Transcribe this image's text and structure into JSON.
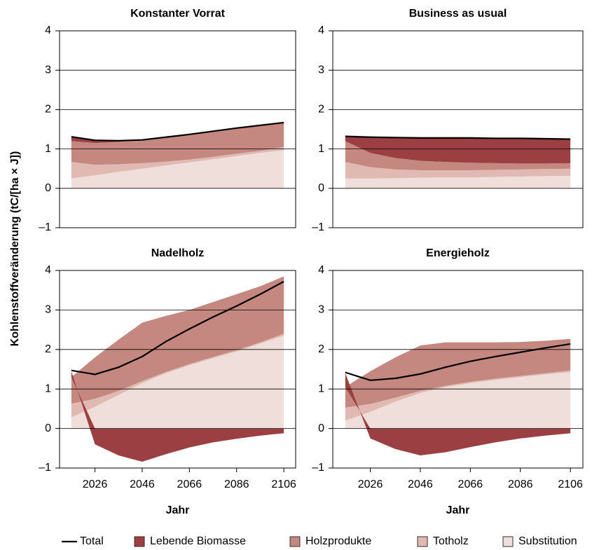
{
  "chart_data": [
    {
      "type": "area",
      "title": "Konstanter Vorrat",
      "ylabel": "Kohlenstoffveränderung (tC/[ha × J])",
      "x": [
        2016,
        2026,
        2036,
        2046,
        2056,
        2066,
        2076,
        2086,
        2096,
        2106
      ],
      "xlim": [
        2011,
        2111
      ],
      "ylim": [
        -1,
        4
      ],
      "yticks": [
        {
          "value": -1,
          "label": "–1"
        },
        0,
        1,
        2,
        3,
        4
      ],
      "grid": true,
      "series": [
        {
          "name": "Total",
          "type": "line",
          "color": "#000000",
          "values": [
            1.31,
            1.22,
            1.21,
            1.23,
            1.3,
            1.37,
            1.45,
            1.53,
            1.6,
            1.67
          ]
        },
        {
          "name": "Lebende Biomasse",
          "color": "#9b3f42",
          "values": [
            0.1,
            0.05,
            0.02,
            0,
            0,
            0,
            0,
            0,
            0,
            0
          ]
        },
        {
          "name": "Holzprodukte",
          "color": "#c48880",
          "values": [
            0.53,
            0.55,
            0.57,
            0.58,
            0.62,
            0.64,
            0.65,
            0.65,
            0.65,
            0.62
          ]
        },
        {
          "name": "Totholz",
          "color": "#dfb9b2",
          "values": [
            0.42,
            0.27,
            0.19,
            0.14,
            0.1,
            0.07,
            0.06,
            0.06,
            0.05,
            0.08
          ]
        },
        {
          "name": "Substitution",
          "color": "#f0dedb",
          "values": [
            0.25,
            0.33,
            0.42,
            0.5,
            0.58,
            0.66,
            0.74,
            0.82,
            0.9,
            0.97
          ]
        }
      ]
    },
    {
      "type": "area",
      "title": "Business as usual",
      "x": [
        2016,
        2026,
        2036,
        2046,
        2056,
        2066,
        2076,
        2086,
        2096,
        2106
      ],
      "xlim": [
        2011,
        2111
      ],
      "ylim": [
        -1,
        4
      ],
      "yticks": [
        {
          "value": -1,
          "label": "–1"
        },
        0,
        1,
        2,
        3,
        4
      ],
      "grid": true,
      "series": [
        {
          "name": "Total",
          "type": "line",
          "color": "#000000",
          "values": [
            1.32,
            1.3,
            1.29,
            1.28,
            1.28,
            1.28,
            1.27,
            1.27,
            1.26,
            1.25
          ]
        },
        {
          "name": "Lebende Biomasse",
          "color": "#9b3f42",
          "values": [
            0.1,
            0.39,
            0.51,
            0.57,
            0.6,
            0.62,
            0.62,
            0.63,
            0.62,
            0.6
          ]
        },
        {
          "name": "Holzprodukte",
          "color": "#c48880",
          "values": [
            0.53,
            0.36,
            0.29,
            0.24,
            0.21,
            0.19,
            0.17,
            0.15,
            0.14,
            0.14
          ]
        },
        {
          "name": "Totholz",
          "color": "#dfb9b2",
          "values": [
            0.42,
            0.29,
            0.22,
            0.19,
            0.18,
            0.18,
            0.18,
            0.18,
            0.18,
            0.18
          ]
        },
        {
          "name": "Substitution",
          "color": "#f0dedb",
          "values": [
            0.25,
            0.25,
            0.26,
            0.27,
            0.28,
            0.28,
            0.29,
            0.3,
            0.31,
            0.32
          ]
        }
      ]
    },
    {
      "type": "area",
      "title": "Nadelholz",
      "xlabel": "Jahr",
      "x": [
        2016,
        2026,
        2036,
        2046,
        2056,
        2066,
        2076,
        2086,
        2096,
        2106
      ],
      "xlim": [
        2011,
        2111
      ],
      "xticks": [
        2026,
        2046,
        2066,
        2086,
        2106
      ],
      "ylim": [
        -1,
        4
      ],
      "yticks": [
        {
          "value": -1,
          "label": "–1"
        },
        0,
        1,
        2,
        3,
        4
      ],
      "grid": true,
      "series": [
        {
          "name": "Total",
          "type": "line",
          "color": "#000000",
          "values": [
            1.47,
            1.37,
            1.55,
            1.82,
            2.2,
            2.52,
            2.82,
            3.1,
            3.4,
            3.72
          ]
        },
        {
          "name": "Lebende Biomasse",
          "color": "#9b3f42",
          "values": [
            0.15,
            -0.4,
            -0.68,
            -0.84,
            -0.65,
            -0.48,
            -0.35,
            -0.26,
            -0.18,
            -0.12
          ]
        },
        {
          "name": "Holzprodukte",
          "color": "#c48880",
          "values": [
            0.67,
            1.05,
            1.3,
            1.48,
            1.42,
            1.37,
            1.39,
            1.42,
            1.42,
            1.45
          ]
        },
        {
          "name": "Totholz",
          "color": "#dfb9b2",
          "values": [
            0.35,
            0.2,
            0.1,
            0.05,
            0.03,
            0.03,
            0.03,
            0.03,
            0.03,
            0.05
          ]
        },
        {
          "name": "Substitution",
          "color": "#f0dedb",
          "values": [
            0.28,
            0.55,
            0.85,
            1.15,
            1.4,
            1.6,
            1.78,
            1.95,
            2.15,
            2.35
          ]
        }
      ]
    },
    {
      "type": "area",
      "title": "Energieholz",
      "xlabel": "Jahr",
      "x": [
        2016,
        2026,
        2036,
        2046,
        2056,
        2066,
        2076,
        2086,
        2096,
        2106
      ],
      "xlim": [
        2011,
        2111
      ],
      "xticks": [
        2026,
        2046,
        2066,
        2086,
        2106
      ],
      "ylim": [
        -1,
        4
      ],
      "yticks": [
        {
          "value": -1,
          "label": "–1"
        },
        0,
        1,
        2,
        3,
        4
      ],
      "grid": true,
      "series": [
        {
          "name": "Total",
          "type": "line",
          "color": "#000000",
          "values": [
            1.42,
            1.22,
            1.27,
            1.38,
            1.55,
            1.7,
            1.82,
            1.93,
            2.04,
            2.14
          ]
        },
        {
          "name": "Lebende Biomasse",
          "color": "#9b3f42",
          "values": [
            0.35,
            -0.25,
            -0.52,
            -0.68,
            -0.6,
            -0.47,
            -0.35,
            -0.25,
            -0.18,
            -0.12
          ]
        },
        {
          "name": "Holzprodukte",
          "color": "#c48880",
          "values": [
            0.52,
            0.83,
            1.02,
            1.15,
            1.1,
            1.0,
            0.92,
            0.86,
            0.82,
            0.8
          ]
        },
        {
          "name": "Totholz",
          "color": "#dfb9b2",
          "values": [
            0.33,
            0.2,
            0.1,
            0.05,
            0.03,
            0.03,
            0.03,
            0.03,
            0.03,
            0.04
          ]
        },
        {
          "name": "Substitution",
          "color": "#f0dedb",
          "values": [
            0.2,
            0.42,
            0.68,
            0.9,
            1.05,
            1.15,
            1.23,
            1.3,
            1.37,
            1.43
          ]
        }
      ]
    }
  ]
}
